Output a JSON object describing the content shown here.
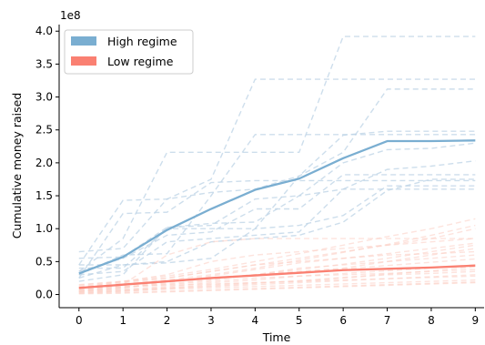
{
  "chart_data": {
    "type": "line",
    "xlabel": "Time",
    "ylabel": "Cumulative money raised",
    "y_offset_label": "1e8",
    "y_scale_multiplier": 100000000,
    "xlim": [
      -0.45,
      9.2
    ],
    "ylim": [
      -0.2,
      4.1
    ],
    "x_ticks": [
      0,
      1,
      2,
      3,
      4,
      5,
      6,
      7,
      8,
      9
    ],
    "x_tick_labels": [
      "0",
      "1",
      "2",
      "3",
      "4",
      "5",
      "6",
      "7",
      "8",
      "9"
    ],
    "y_ticks": [
      0.0,
      0.5,
      1.0,
      1.5,
      2.0,
      2.5,
      3.0,
      3.5,
      4.0
    ],
    "y_tick_labels": [
      "0.0",
      "0.5",
      "1.0",
      "1.5",
      "2.0",
      "2.5",
      "3.0",
      "3.5",
      "4.0"
    ],
    "grid": false,
    "legend_position": "top-left",
    "x": [
      0,
      1,
      2,
      3,
      4,
      5,
      6,
      7,
      8,
      9
    ],
    "colors": {
      "high": "#7aaed1",
      "low": "#fa8072",
      "high_light": "#bcd3e6",
      "low_light": "#fbd0c7"
    },
    "series": [
      {
        "name": "High regime",
        "group": "high",
        "kind": "mean",
        "values": [
          0.32,
          0.57,
          0.98,
          1.3,
          1.59,
          1.76,
          2.07,
          2.33,
          2.33,
          2.34
        ]
      },
      {
        "name": "Low regime",
        "group": "low",
        "kind": "mean",
        "values": [
          0.1,
          0.15,
          0.2,
          0.25,
          0.29,
          0.33,
          0.37,
          0.39,
          0.41,
          0.44
        ]
      }
    ],
    "individual_series": {
      "high": [
        [
          0.65,
          0.7,
          1.45,
          1.75,
          3.27,
          3.27,
          3.27,
          3.27,
          3.27,
          3.27
        ],
        [
          0.35,
          0.85,
          2.16,
          2.16,
          2.16,
          2.16,
          3.92,
          3.92,
          3.92,
          3.92
        ],
        [
          0.45,
          1.43,
          1.45,
          1.55,
          1.6,
          1.8,
          2.16,
          3.12,
          3.12,
          3.12
        ],
        [
          0.3,
          0.6,
          0.62,
          1.5,
          2.43,
          2.43,
          2.43,
          2.43,
          2.43,
          2.43
        ],
        [
          0.4,
          0.4,
          1.0,
          1.0,
          1.0,
          1.8,
          2.42,
          2.48,
          2.48,
          2.48
        ],
        [
          0.25,
          1.23,
          1.25,
          1.7,
          1.73,
          1.73,
          1.73,
          1.73,
          1.73,
          1.73
        ],
        [
          0.35,
          0.55,
          0.9,
          0.95,
          1.3,
          1.3,
          1.82,
          1.82,
          1.82,
          1.82
        ],
        [
          0.2,
          0.3,
          1.02,
          1.08,
          1.1,
          1.5,
          1.6,
          1.6,
          1.6,
          1.6
        ],
        [
          0.45,
          0.45,
          0.48,
          0.55,
          1.0,
          1.05,
          1.2,
          1.65,
          1.65,
          1.65
        ],
        [
          0.3,
          0.35,
          0.8,
          0.85,
          0.9,
          0.95,
          1.6,
          1.9,
          1.95,
          2.03
        ],
        [
          0.55,
          0.57,
          1.02,
          1.05,
          1.45,
          1.5,
          2.0,
          2.2,
          2.22,
          2.3
        ],
        [
          0.25,
          0.45,
          0.5,
          0.8,
          0.85,
          0.9,
          1.1,
          1.58,
          1.75,
          1.75
        ]
      ],
      "low": [
        [
          0.05,
          0.15,
          0.6,
          0.8,
          0.85,
          0.85,
          0.85,
          0.85,
          0.85,
          0.85
        ],
        [
          0.1,
          0.2,
          0.3,
          0.5,
          0.6,
          0.65,
          0.7,
          0.75,
          0.8,
          0.85
        ],
        [
          0.05,
          0.1,
          0.2,
          0.25,
          0.3,
          0.35,
          0.4,
          0.5,
          0.6,
          0.7
        ],
        [
          0.1,
          0.15,
          0.2,
          0.25,
          0.3,
          0.4,
          0.45,
          0.5,
          0.55,
          0.6
        ],
        [
          0.15,
          0.2,
          0.25,
          0.35,
          0.45,
          0.5,
          0.55,
          0.6,
          0.62,
          0.65
        ],
        [
          0.05,
          0.08,
          0.12,
          0.18,
          0.22,
          0.28,
          0.32,
          0.36,
          0.4,
          0.45
        ],
        [
          0.02,
          0.05,
          0.1,
          0.15,
          0.18,
          0.2,
          0.25,
          0.3,
          0.32,
          0.35
        ],
        [
          0.08,
          0.12,
          0.15,
          0.2,
          0.25,
          0.28,
          0.3,
          0.32,
          0.35,
          0.38
        ],
        [
          0.1,
          0.12,
          0.14,
          0.16,
          0.18,
          0.2,
          0.22,
          0.24,
          0.26,
          0.28
        ],
        [
          0.03,
          0.05,
          0.08,
          0.1,
          0.12,
          0.14,
          0.16,
          0.18,
          0.2,
          0.22
        ],
        [
          0.12,
          0.18,
          0.25,
          0.35,
          0.45,
          0.55,
          0.65,
          0.75,
          0.85,
          1.0
        ],
        [
          0.06,
          0.1,
          0.18,
          0.28,
          0.38,
          0.48,
          0.55,
          0.62,
          0.7,
          0.78
        ],
        [
          0.04,
          0.06,
          0.09,
          0.12,
          0.15,
          0.18,
          0.21,
          0.24,
          0.27,
          0.3
        ],
        [
          0.09,
          0.14,
          0.19,
          0.24,
          0.29,
          0.34,
          0.39,
          0.44,
          0.49,
          0.54
        ],
        [
          0.02,
          0.03,
          0.05,
          0.07,
          0.09,
          0.11,
          0.13,
          0.15,
          0.17,
          0.19
        ],
        [
          0.07,
          0.11,
          0.16,
          0.22,
          0.3,
          0.38,
          0.46,
          0.55,
          0.65,
          0.75
        ],
        [
          0.01,
          0.02,
          0.04,
          0.06,
          0.08,
          0.1,
          0.12,
          0.14,
          0.16,
          0.18
        ],
        [
          0.14,
          0.2,
          0.28,
          0.38,
          0.5,
          0.62,
          0.75,
          0.88,
          1.0,
          1.15
        ],
        [
          0.05,
          0.07,
          0.1,
          0.13,
          0.17,
          0.21,
          0.26,
          0.31,
          0.36,
          0.42
        ],
        [
          0.11,
          0.16,
          0.22,
          0.3,
          0.4,
          0.52,
          0.64,
          0.76,
          0.9,
          1.05
        ]
      ]
    }
  }
}
